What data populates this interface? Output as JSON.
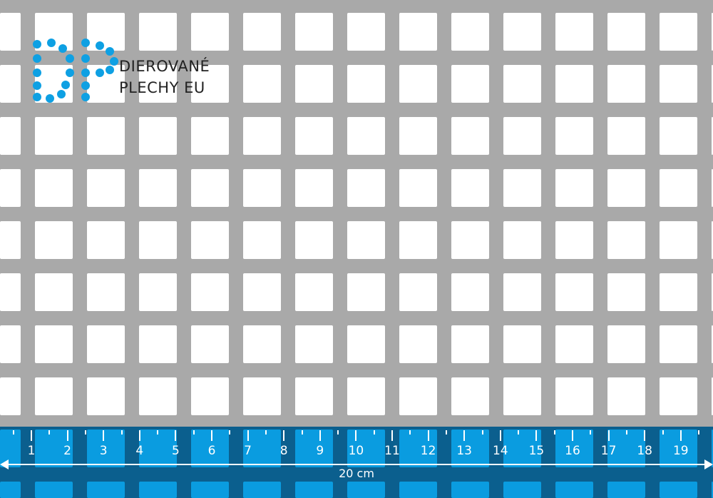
{
  "logo": {
    "line1": "DIEROVANÉ",
    "line2": "PLECHY EU",
    "monogram": "DP",
    "color": "#0ea0e3"
  },
  "ruler": {
    "labels": [
      "1",
      "2",
      "3",
      "4",
      "5",
      "6",
      "7",
      "8",
      "9",
      "10",
      "11",
      "12",
      "13",
      "14",
      "15",
      "16",
      "17",
      "18",
      "19"
    ],
    "length_label": "20 cm",
    "background": "#0b5f8e",
    "hole_color": "#0a9ce0"
  },
  "sheet": {
    "metal_color": "#a9a9a9",
    "hole_shape": "square"
  }
}
